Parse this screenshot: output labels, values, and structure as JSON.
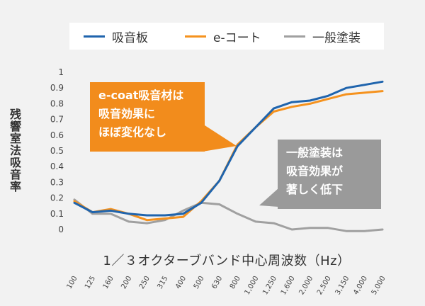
{
  "chart_data": {
    "type": "line",
    "categories": [
      "100",
      "125",
      "160",
      "200",
      "250",
      "315",
      "400",
      "500",
      "630",
      "800",
      "1,000",
      "1,250",
      "1,600",
      "2,000",
      "2,500",
      "3,150",
      "4,000",
      "5,000"
    ],
    "series": [
      {
        "name": "吸音板",
        "color": "#1f64ad",
        "values": [
          0.17,
          0.11,
          0.12,
          0.1,
          0.09,
          0.09,
          0.1,
          0.17,
          0.31,
          0.53,
          0.65,
          0.77,
          0.81,
          0.82,
          0.85,
          0.9,
          0.92,
          0.94
        ]
      },
      {
        "name": "e-コート",
        "color": "#f5921e",
        "values": [
          0.18,
          0.11,
          0.13,
          0.1,
          0.06,
          0.07,
          0.08,
          0.18,
          0.31,
          0.54,
          0.65,
          0.75,
          0.78,
          0.8,
          0.83,
          0.86,
          0.87,
          0.88
        ]
      },
      {
        "name": "一般塗装",
        "color": "#a0a0a0",
        "values": [
          0.19,
          0.1,
          0.1,
          0.05,
          0.04,
          0.06,
          0.12,
          0.17,
          0.16,
          0.1,
          0.05,
          0.04,
          0.0,
          0.01,
          0.01,
          -0.01,
          -0.01,
          0.0
        ]
      }
    ],
    "yticks": [
      "0",
      "0.1",
      "0.2",
      "0.3",
      "0.4",
      "0.5",
      "0.6",
      "0.7",
      "0.8",
      "0.9",
      "1"
    ],
    "ylim": [
      0,
      1
    ],
    "xlabel": "1／３オクターブバンド中心周波数（Hz）",
    "ylabel": "残響室法吸音率",
    "annotations": [
      {
        "lines": [
          "e-coat吸音材は",
          "吸音効果に",
          "ほぼ変化なし"
        ],
        "color": "#f28c1c"
      },
      {
        "lines": [
          "一般塗装は",
          "吸音効果が",
          "著しく低下"
        ],
        "color": "#9a9a9a"
      }
    ],
    "legend_position": "top",
    "grid": false
  }
}
